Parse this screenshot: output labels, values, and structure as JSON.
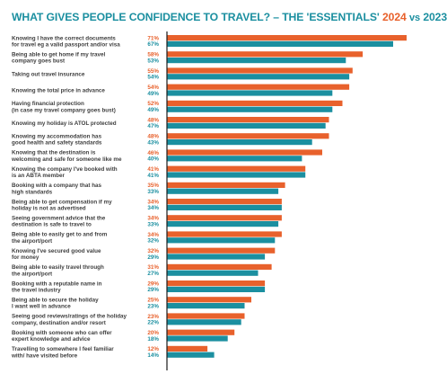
{
  "chart_data": {
    "type": "bar",
    "orientation": "horizontal",
    "title_parts": {
      "main": "WHAT GIVES PEOPLE CONFIDENCE TO TRAVEL? – THE 'ESSENTIALS'",
      "year_a": "2024",
      "vs": "vs",
      "year_b": "2023"
    },
    "xlim": [
      0,
      75
    ],
    "grid": false,
    "legend": "none",
    "colors": {
      "2024": "#e8612c",
      "2023": "#1b8fa0",
      "axis": "#1a1a1a"
    },
    "categories": [
      [
        "Knowing I have the correct documents",
        "for travel eg a valid passport and/or visa"
      ],
      [
        "Being able to get home if my travel",
        "company goes bust"
      ],
      [
        "Taking out travel insurance"
      ],
      [
        "Knowing the total price in advance"
      ],
      [
        "Having financial protection",
        "(in case my travel company goes bust)"
      ],
      [
        "Knowing my holiday is ATOL protected"
      ],
      [
        "Knowing my accommodation has",
        "good health and safety standards"
      ],
      [
        "Knowing that the destination is",
        "welcoming and safe for someone like me"
      ],
      [
        "Knowing the company I've booked with",
        "is an ABTA member"
      ],
      [
        "Booking with a company that has",
        "high standards"
      ],
      [
        "Being able to get compensation if my",
        "holiday is not as advertised"
      ],
      [
        "Seeing government advice that the",
        "destination is safe to travel to"
      ],
      [
        "Being able to easily get to and from",
        "the airport/port"
      ],
      [
        "Knowing I've secured good value",
        "for money"
      ],
      [
        "Being able to easily travel through",
        "the airport/port"
      ],
      [
        "Booking with a reputable name in",
        "the travel industry"
      ],
      [
        "Being able to secure the holiday",
        "I want well in advance"
      ],
      [
        "Seeing good reviews/ratings of the holiday",
        "company, destination and/or resort"
      ],
      [
        "Booking with someone who can offer",
        "expert knowledge and advice"
      ],
      [
        "Travelling to somewhere I feel familiar",
        "with/ have visited before"
      ]
    ],
    "series": [
      {
        "name": "2024",
        "values": [
          71,
          58,
          55,
          54,
          52,
          48,
          48,
          46,
          41,
          35,
          34,
          34,
          34,
          32,
          31,
          29,
          25,
          23,
          20,
          12
        ]
      },
      {
        "name": "2023",
        "values": [
          67,
          53,
          54,
          49,
          49,
          47,
          43,
          40,
          41,
          33,
          34,
          33,
          32,
          29,
          27,
          29,
          23,
          22,
          18,
          14
        ]
      }
    ],
    "value_suffix": "%"
  }
}
